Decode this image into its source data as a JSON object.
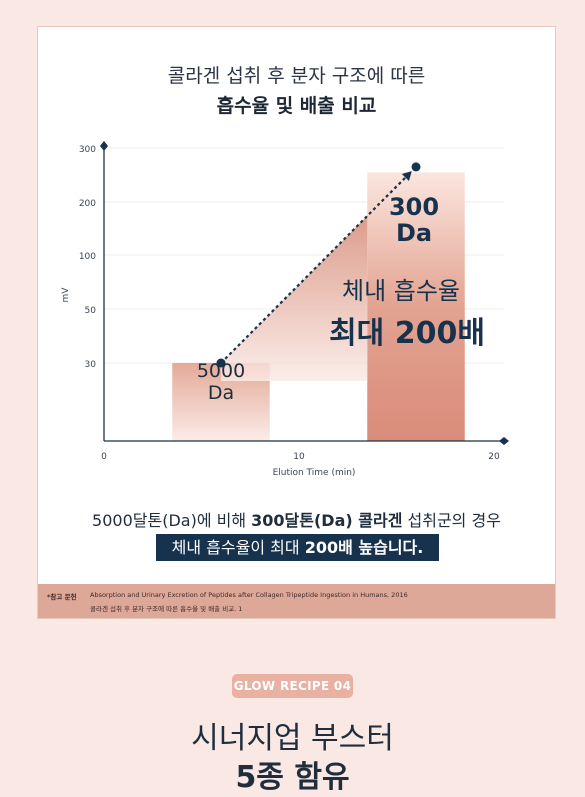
{
  "chart_data": {
    "type": "bar",
    "title_line1": "콜라겐 섭취 후 분자 구조에 따른",
    "title_line2": "흡수율 및 배출 비교",
    "ylabel": "mV",
    "xlabel": "Elution Time (min)",
    "y_ticks": [
      "300",
      "200",
      "100",
      "50",
      "30"
    ],
    "x_ticks": [
      "0",
      "10",
      "20"
    ],
    "xlim": [
      0,
      20
    ],
    "bars": [
      {
        "label_line1": "5000",
        "label_line2": "Da",
        "x_start": 3.5,
        "x_end": 8.5,
        "y": 30
      },
      {
        "label_line1": "300",
        "label_line2": "Da",
        "x_start": 13.5,
        "x_end": 18.5,
        "y": 255
      }
    ],
    "trend_points": [
      {
        "x": 6,
        "y": 30
      },
      {
        "x": 16,
        "y": 265
      }
    ],
    "annotation_line1": "체내 흡수율",
    "annotation_line2": "최대 200배",
    "colors": {
      "bar_light": "#f3d0c6",
      "bar_dark": "#d78d7b",
      "axis": "#17324d"
    }
  },
  "summary": {
    "line1_a": "5000달톤(Da)에 비해 ",
    "line1_b": "300달톤(Da) 콜라겐",
    "line1_c": " 섭취군의 경우",
    "line2_a": "체내 흡수율이 최대 ",
    "line2_b": "200배 높습니다."
  },
  "reference": {
    "label": "*참고 문헌",
    "line1": "Absorption and Urinary Excretion of Peptides after Collagen Tripeptide Ingestion in Humans, 2016",
    "line2": "콜라겐 섭취 후 분자 구조에 따른 흡수율 및 배출 비교. 1"
  },
  "badge": "GLOW RECIPE 04",
  "heading_line1": "시너지업 부스터",
  "heading_line2": "5종 함유"
}
